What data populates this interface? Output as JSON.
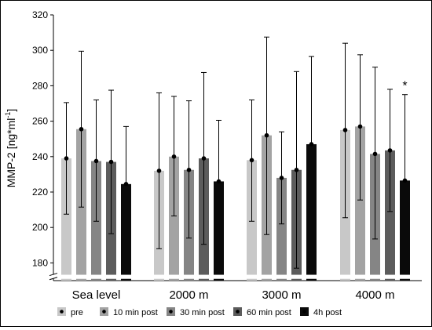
{
  "chart_data": {
    "type": "bar",
    "title": "",
    "ylabel": "MMP-2 [ng*ml-1]",
    "ylabel_parts": {
      "base": "MMP-2 [ng*ml",
      "sup": "-1",
      "end": "]"
    },
    "xlabel": "",
    "ylim": [
      170,
      320
    ],
    "yticks": [
      180,
      200,
      220,
      240,
      260,
      280,
      300,
      320
    ],
    "grid": false,
    "legend_position": "bottom",
    "categories": [
      "Sea level",
      "2000 m",
      "3000 m",
      "4000 m"
    ],
    "series": [
      {
        "name": "pre",
        "color": "#c8c8c8",
        "values": [
          239,
          232,
          238,
          255
        ],
        "err_low": [
          207.5,
          188,
          203.5,
          205.5
        ],
        "err_high": [
          270.5,
          276,
          272,
          304
        ]
      },
      {
        "name": "10 min post",
        "color": "#a3a3a3",
        "values": [
          255.5,
          240,
          252,
          257
        ],
        "err_low": [
          211.5,
          206.5,
          196,
          215.5
        ],
        "err_high": [
          299.5,
          274,
          307.5,
          297.5
        ]
      },
      {
        "name": "30 min post",
        "color": "#858585",
        "values": [
          237.5,
          232.5,
          228,
          241.5
        ],
        "err_low": [
          203.5,
          194,
          202,
          193.5
        ],
        "err_high": [
          272,
          271.5,
          254,
          290.5
        ]
      },
      {
        "name": "60 min post",
        "color": "#5c5c5c",
        "values": [
          237,
          239,
          232.5,
          243.5
        ],
        "err_low": [
          196.5,
          190.5,
          177,
          209
        ],
        "err_high": [
          277.5,
          287.5,
          288,
          278
        ]
      },
      {
        "name": "4h post",
        "color": "#0a0a0a",
        "values": [
          224.5,
          226,
          247,
          226.5
        ],
        "err_low": [
          224.5,
          226,
          247,
          226.5
        ],
        "err_high": [
          257,
          260.5,
          296.5,
          275
        ]
      }
    ],
    "annotations": [
      {
        "text": "*",
        "category": "4000 m",
        "series": "4h post"
      }
    ]
  }
}
